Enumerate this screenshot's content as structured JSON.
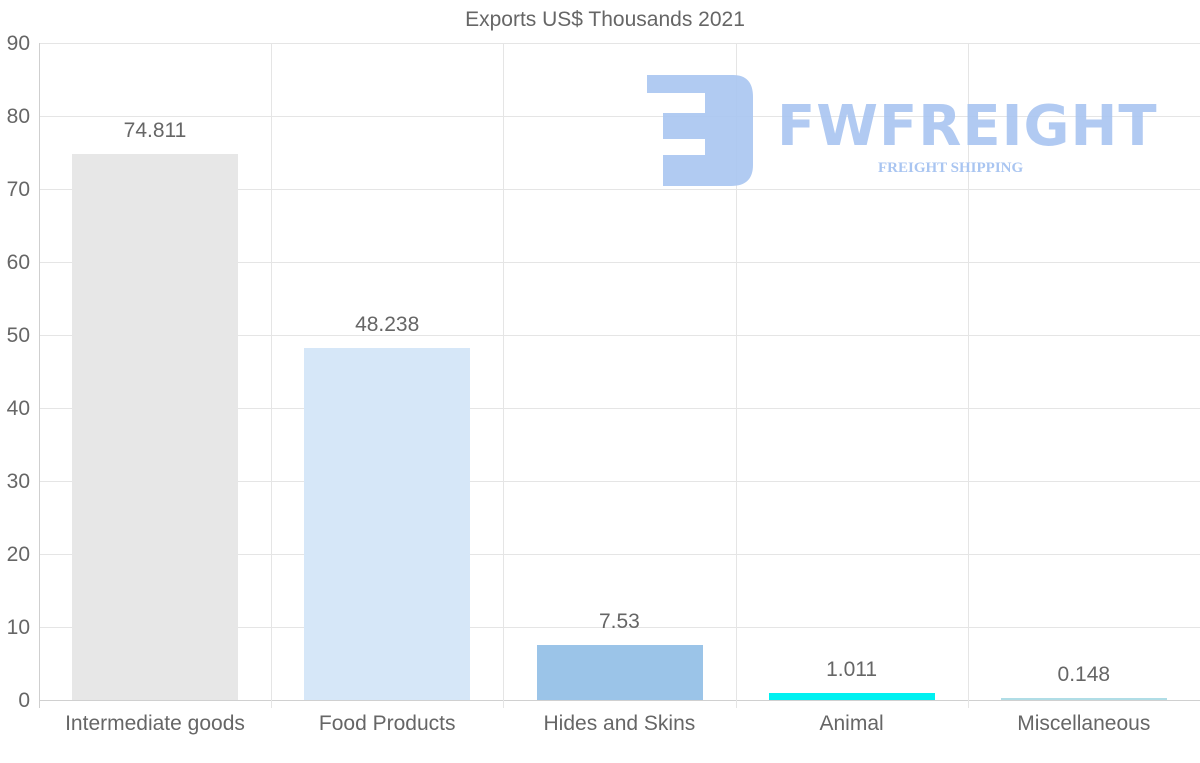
{
  "chart_data": {
    "type": "bar",
    "title": "Exports US$ Thousands 2021",
    "xlabel": "",
    "ylabel": "",
    "categories": [
      "Intermediate goods",
      "Food Products",
      "Hides and Skins",
      "Animal",
      "Miscellaneous"
    ],
    "values": [
      74.811,
      48.238,
      7.53,
      1.011,
      0.148
    ],
    "value_labels": [
      "74.811",
      "48.238",
      "7.53",
      "1.011",
      "0.148"
    ],
    "colors": [
      "#e7e7e7",
      "#d6e7f8",
      "#9bc4e8",
      "#00f1f1",
      "#b0dde6"
    ],
    "ylim": [
      0,
      90
    ],
    "yticks": [
      "0",
      "10",
      "20",
      "30",
      "40",
      "50",
      "60",
      "70",
      "80",
      "90"
    ],
    "grid": true,
    "legend": null
  },
  "watermark": {
    "brand": "FWFREIGHT",
    "tagline": "FREIGHT SHIPPING",
    "color": "#a9c5f1"
  }
}
